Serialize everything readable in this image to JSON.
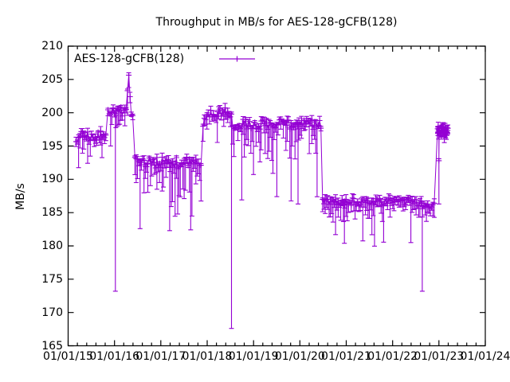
{
  "chart_data": {
    "type": "line",
    "title": "Throughput in MB/s for AES-128-gCFB(128)",
    "ylabel": "MB/s",
    "ylim": [
      165,
      210
    ],
    "xlim": [
      "01/01/15",
      "01/01/24"
    ],
    "y_ticks": [
      210,
      205,
      200,
      195,
      190,
      185,
      180,
      175,
      170,
      165
    ],
    "x_ticks": [
      "01/01/15",
      "01/01/16",
      "01/01/17",
      "01/01/18",
      "01/01/19",
      "01/01/20",
      "01/01/21",
      "01/01/22",
      "01/01/23",
      "01/01/24"
    ],
    "x_minor_divisions": 5,
    "grid": false,
    "legend": {
      "label": "AES-128-gCFB(128)",
      "position": "top-left-inside"
    },
    "color": "#9400d3",
    "axis_color": "#000000",
    "series": [
      {
        "name": "AES-128-gCFB(128)",
        "style": "points with downward error bars, connected",
        "marker": "plus",
        "segments": [
          {
            "t0": 2015.17,
            "t1": 2015.84,
            "base": 196.4,
            "amp": 0.85,
            "err_prob": 0.5,
            "err_depth": [
              1.5,
              4.5
            ],
            "deep_prob": 0.1,
            "deep_depth": [
              4.5,
              6.8
            ]
          },
          {
            "t0": 2015.86,
            "t1": 2016.42,
            "base": 200.2,
            "amp": 0.7,
            "err_prob": 0.5,
            "err_depth": [
              1.5,
              5.0
            ],
            "deep_prob": 0.1,
            "deep_depth": [
              6.0,
              14.5
            ],
            "bump": {
              "center": 2016.3,
              "sigma": 0.025,
              "height": 5.0
            }
          },
          {
            "t0": 2016.44,
            "t1": 2017.87,
            "base": 192.5,
            "amp": 0.9,
            "err_prob": 0.5,
            "err_depth": [
              1.5,
              5.0
            ],
            "deep_prob": 0.12,
            "deep_depth": [
              5.0,
              10.0
            ]
          },
          {
            "t0": 2017.91,
            "t1": 2018.51,
            "base": 200.1,
            "amp": 0.75,
            "err_prob": 0.45,
            "err_depth": [
              0.8,
              3.0
            ],
            "deep_prob": 0.07,
            "deep_depth": [
              3.0,
              7.0
            ],
            "ramp_in": {
              "until": 2018.05,
              "from": 198.4
            }
          },
          {
            "t0": 2018.55,
            "t1": 2020.46,
            "base": 198.3,
            "amp": 0.8,
            "err_prob": 0.5,
            "err_depth": [
              1.5,
              5.0
            ],
            "deep_prob": 0.1,
            "deep_depth": [
              5.0,
              12.0
            ]
          },
          {
            "t0": 2020.49,
            "t1": 2022.92,
            "base": 186.6,
            "amp": 0.6,
            "err_prob": 0.5,
            "err_depth": [
              0.8,
              2.6
            ],
            "deep_prob": 0.1,
            "deep_depth": [
              2.6,
              6.3
            ],
            "sag": {
              "center": 2022.7,
              "sigma": 0.12,
              "height": -0.8
            }
          },
          {
            "t0": 2022.97,
            "t1": 2023.2,
            "base": 197.4,
            "amp": 0.55,
            "err_prob": 0.35,
            "err_depth": [
              0.5,
              1.5
            ],
            "deep_prob": 0.0,
            "deep_depth": [
              0,
              0
            ],
            "step": 0.007
          }
        ],
        "notable_dips": [
          {
            "t": 2016.02,
            "v": 199.6,
            "low": 173.2
          },
          {
            "t": 2017.19,
            "v": 192.3,
            "low": 182.3
          },
          {
            "t": 2018.525,
            "v": 199.8,
            "low": 167.6
          },
          {
            "t": 2019.96,
            "v": 198.0,
            "low": 186.3
          },
          {
            "t": 2020.96,
            "v": 186.7,
            "low": 180.4
          },
          {
            "t": 2022.64,
            "v": 186.4,
            "low": 173.2
          },
          {
            "t": 2023.0,
            "v": 192.8,
            "low": 186.3
          }
        ]
      }
    ]
  }
}
